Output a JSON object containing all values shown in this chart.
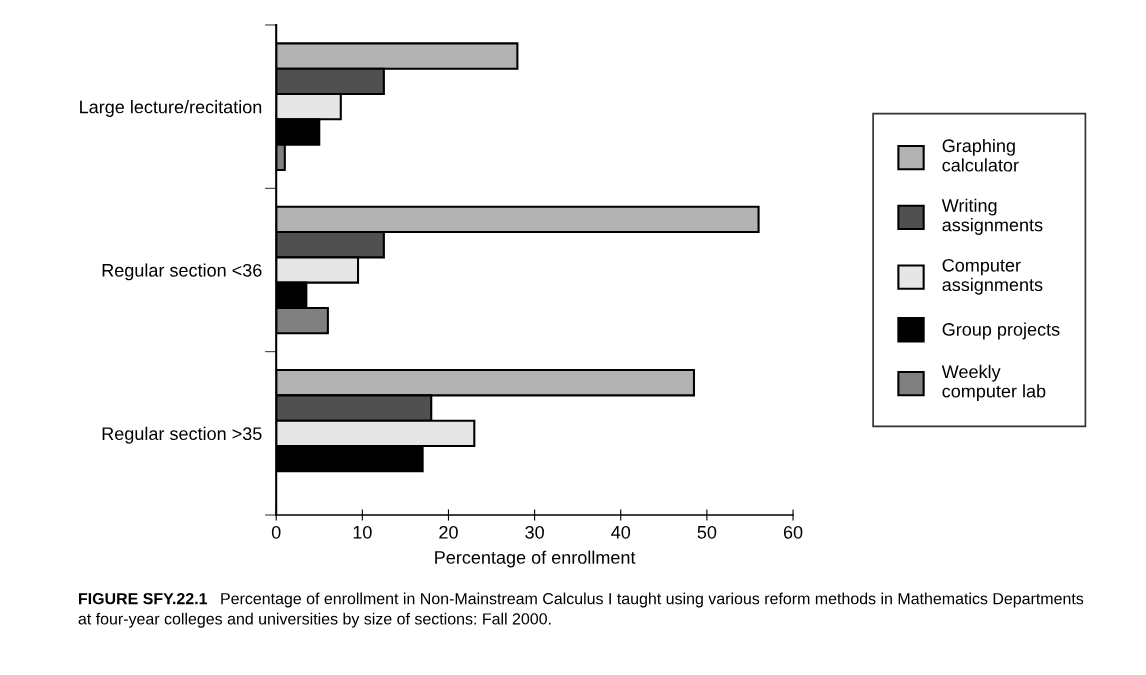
{
  "chart_data": {
    "type": "bar",
    "orientation": "horizontal",
    "categories": [
      "Large lecture/recitation",
      "Regular section <36",
      "Regular section >35"
    ],
    "series": [
      {
        "name": "Graphing calculator",
        "color": "#b3b3b3",
        "values": [
          28,
          56,
          48.5
        ]
      },
      {
        "name": "Writing assignments",
        "color": "#505050",
        "values": [
          12.5,
          12.5,
          18
        ]
      },
      {
        "name": "Computer assignments",
        "color": "#e6e6e6",
        "values": [
          7.5,
          9.5,
          23
        ]
      },
      {
        "name": "Group projects",
        "color": "#000000",
        "values": [
          5,
          3.5,
          17
        ]
      },
      {
        "name": "Weekly computer lab",
        "color": "#808080",
        "values": [
          1,
          6,
          null
        ]
      }
    ],
    "xlim": [
      0,
      60
    ],
    "xticks": [
      0,
      10,
      20,
      30,
      40,
      50,
      60
    ],
    "xlabel": "Percentage of enrollment",
    "legend": "right",
    "grid": false,
    "annotations": [
      "FIGURE SFY.22.1",
      "Percentage of enrollment in Non-Mainstream Calculus I taught using various reform methods in Mathematics Departments at four-year colleges and universities by size of sections: Fall 2000."
    ]
  }
}
